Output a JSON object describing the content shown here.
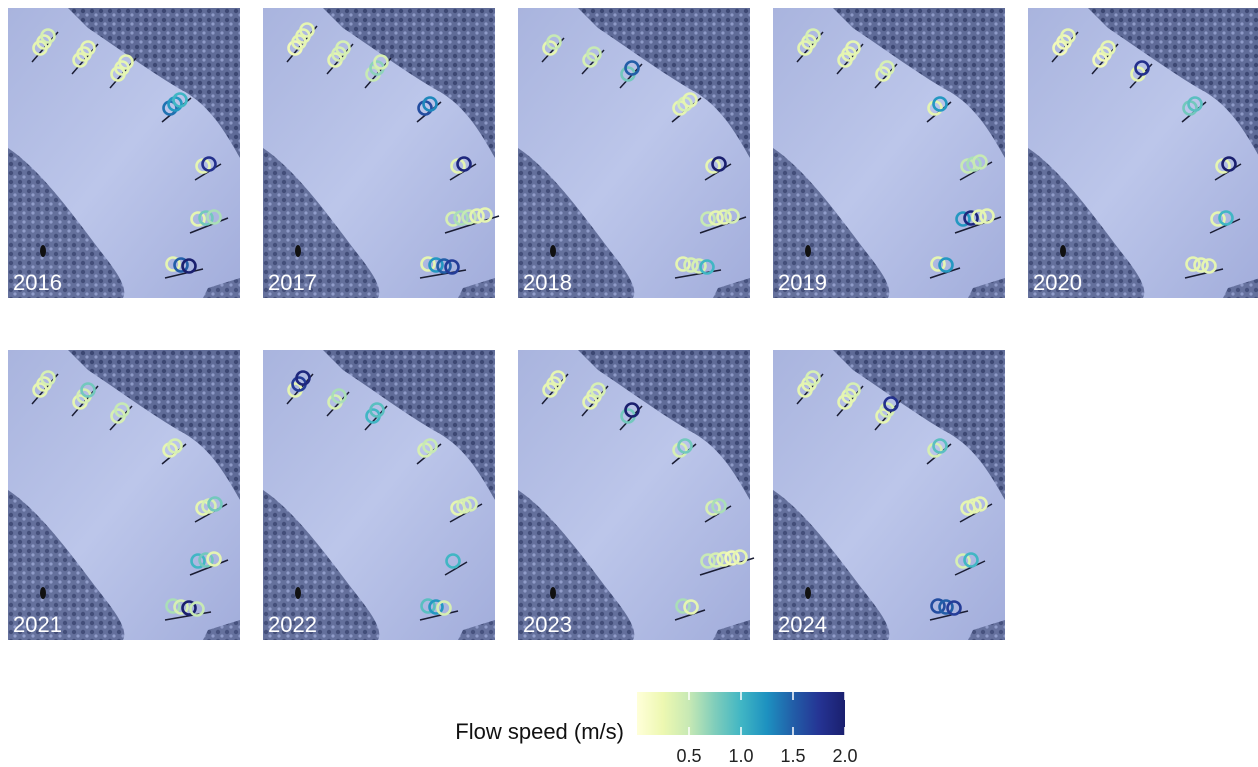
{
  "panels": [
    {
      "year": "2016",
      "stakes": [
        [
          0.3,
          0.3,
          0.4
        ],
        [
          0.3,
          0.3,
          0.3
        ],
        [
          0.3,
          0.3,
          0.3
        ],
        [
          1.4,
          1.2,
          1.0
        ],
        [
          0.3,
          1.8
        ],
        [
          0.3,
          0.8,
          0.6
        ],
        [
          0.3,
          1.5,
          2.0
        ]
      ]
    },
    {
      "year": "2017",
      "stakes": [
        [
          0.2,
          0.3,
          0.3,
          0.3
        ],
        [
          0.3,
          0.4,
          0.4
        ],
        [
          0.5,
          0.7,
          0.4
        ],
        [
          1.6,
          1.3
        ],
        [
          0.3,
          1.9
        ],
        [
          0.4,
          0.6,
          0.5,
          0.3,
          0.3
        ],
        [
          0.3,
          1.2,
          1.5,
          1.7
        ]
      ]
    },
    {
      "year": "2018",
      "stakes": [
        [
          0.3,
          0.5
        ],
        [
          0.4,
          0.5
        ],
        [
          0.8,
          1.5
        ],
        [
          0.3,
          0.4,
          0.3
        ],
        [
          0.3,
          2.0
        ],
        [
          0.5,
          0.3,
          0.3,
          0.4
        ],
        [
          0.3,
          0.4,
          0.4,
          1.0
        ]
      ]
    },
    {
      "year": "2019",
      "stakes": [
        [
          0.3,
          0.3,
          0.4
        ],
        [
          0.3,
          0.3,
          0.3
        ],
        [
          0.3,
          0.4
        ],
        [
          0.3,
          1.2
        ],
        [
          0.5,
          0.6,
          0.5
        ],
        [
          1.2,
          1.9,
          0.3,
          0.3
        ],
        [
          0.3,
          1.2
        ]
      ]
    },
    {
      "year": "2020",
      "stakes": [
        [
          0.2,
          0.2,
          0.3
        ],
        [
          0.2,
          0.2,
          0.3
        ],
        [
          0.3,
          1.8
        ],
        [
          0.8,
          0.9
        ],
        [
          0.3,
          2.0
        ],
        [
          0.3,
          1.0
        ],
        [
          0.3,
          0.3,
          0.3
        ]
      ]
    },
    {
      "year": "2021",
      "stakes": [
        [
          0.3,
          0.3,
          0.4
        ],
        [
          0.3,
          0.4,
          0.8
        ],
        [
          0.4,
          0.5
        ],
        [
          0.3,
          0.4
        ],
        [
          0.3,
          0.4,
          0.8
        ],
        [
          1.0,
          0.8,
          0.3
        ],
        [
          0.6,
          0.4,
          2.0,
          0.5
        ]
      ]
    },
    {
      "year": "2022",
      "stakes": [
        [
          0.3,
          1.7,
          1.9
        ],
        [
          0.4,
          0.6
        ],
        [
          1.0,
          0.9
        ],
        [
          0.4,
          0.5
        ],
        [
          0.3,
          0.4,
          0.4
        ],
        [
          1.0
        ],
        [
          0.9,
          1.2,
          0.4
        ]
      ]
    },
    {
      "year": "2023",
      "stakes": [
        [
          0.3,
          0.3,
          0.3
        ],
        [
          0.3,
          0.3,
          0.4
        ],
        [
          0.8,
          2.0
        ],
        [
          0.4,
          0.8
        ],
        [
          0.4,
          0.6
        ],
        [
          0.5,
          0.4,
          0.3,
          0.2,
          0.3
        ],
        [
          0.6,
          0.3
        ]
      ]
    },
    {
      "year": "2024",
      "stakes": [
        [
          0.3,
          0.3,
          0.4
        ],
        [
          0.3,
          0.3,
          0.4
        ],
        [
          0.3,
          0.4,
          1.8
        ],
        [
          0.4,
          0.9
        ],
        [
          0.3,
          0.3,
          0.3
        ],
        [
          0.4,
          1.0
        ],
        [
          1.6,
          1.5,
          1.7
        ]
      ]
    }
  ],
  "legend": {
    "title": "Flow speed (m/s)",
    "lim": [
      0,
      2.0
    ],
    "ticks": [
      {
        "value": 0.5,
        "label": "0.5"
      },
      {
        "value": 1.0,
        "label": "1.0"
      },
      1.5,
      {
        "value": 2.0,
        "label": "2.0"
      }
    ]
  }
}
